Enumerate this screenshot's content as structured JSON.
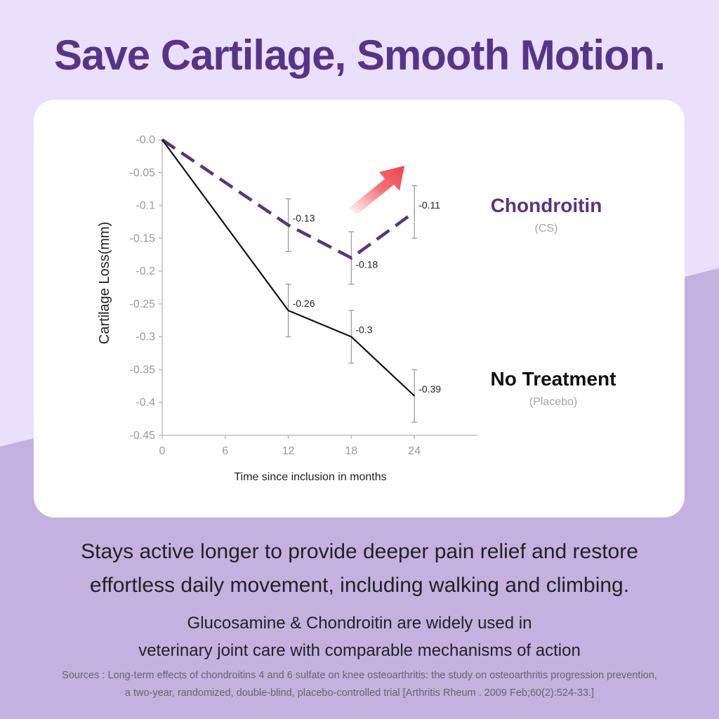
{
  "headline": "Save Cartilage, Smooth Motion.",
  "colors": {
    "page_bg_light": "#ebe0fb",
    "page_bg_lower": "#c4b1e0",
    "title": "#573487",
    "chondroitin": "#573487",
    "placebo": "#111111",
    "errorbar": "#9d9d9d",
    "arrow": "#f0424a"
  },
  "chart_data": {
    "type": "line",
    "ylabel": "Cartilage Loss(mm)",
    "xlabel": "Time since inclusion in months",
    "x_ticks": [
      "0",
      "6",
      "12",
      "18",
      "24"
    ],
    "y_ticks": [
      "-0.0",
      "-0.05",
      "-0.1",
      "-0.15",
      "-0.2",
      "-0.25",
      "-0.3",
      "-0.35",
      "-0.4",
      "-0.45"
    ],
    "xlim": [
      0,
      30
    ],
    "ylim": [
      -0.45,
      0
    ],
    "grid": false,
    "legend_position": "right",
    "annotation": "red arrow pointing up-right indicating recovery of Chondroitin series",
    "series": [
      {
        "name": "Chondroitin",
        "subtitle": "(CS)",
        "style": "dashed",
        "color": "#573487",
        "x": [
          0,
          12,
          18,
          24
        ],
        "y": [
          0,
          -0.13,
          -0.18,
          -0.11
        ],
        "error_low": [
          null,
          -0.17,
          -0.22,
          -0.15
        ],
        "error_high": [
          null,
          -0.09,
          -0.14,
          -0.07
        ],
        "labels": [
          "",
          "-0.13",
          "-0.18",
          "-0.11"
        ]
      },
      {
        "name": "No Treatment",
        "subtitle": "(Placebo)",
        "style": "solid",
        "color": "#111111",
        "x": [
          0,
          12,
          18,
          24
        ],
        "y": [
          0,
          -0.26,
          -0.3,
          -0.39
        ],
        "error_low": [
          null,
          -0.3,
          -0.34,
          -0.43
        ],
        "error_high": [
          null,
          -0.22,
          -0.26,
          -0.35
        ],
        "labels": [
          "",
          "-0.26",
          "-0.3",
          "-0.39"
        ]
      }
    ]
  },
  "subheadline": {
    "line1": "Stays active longer to provide deeper pain relief and restore",
    "line2": "effortless daily movement, including walking and climbing."
  },
  "note": {
    "line1": "Glucosamine & Chondroitin are widely used in",
    "line2": "veterinary joint care with comparable mechanisms of action"
  },
  "sources": {
    "line1": "Sources : Long-term effects of chondroitins 4 and 6 sulfate on knee osteoarthritis: the study on osteoarthritis progression prevention,",
    "line2": "a two-year, randomized, double-blind, placebo-controlled trial [Arthritis Rheum . 2009 Feb;60(2):524-33.]"
  }
}
